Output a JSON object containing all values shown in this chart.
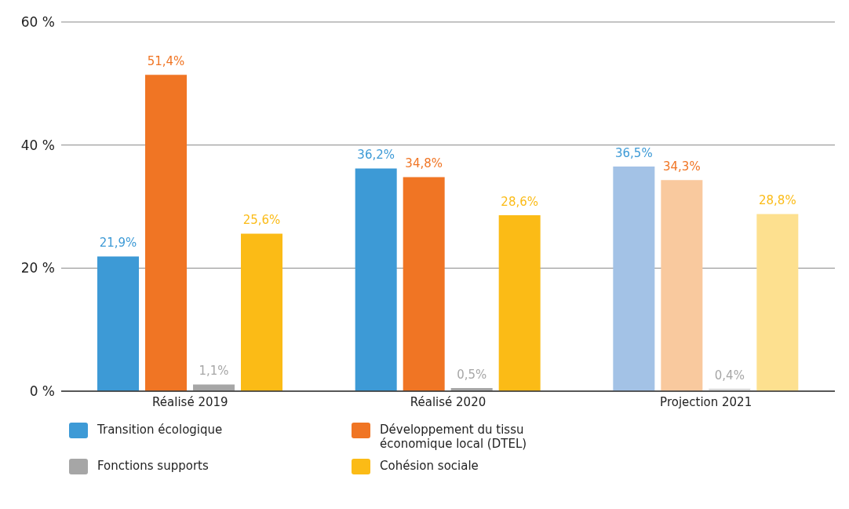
{
  "chart_data": {
    "type": "bar",
    "categories": [
      "Réalisé 2019",
      "Réalisé 2020",
      "Projection 2021"
    ],
    "series": [
      {
        "name": "Transition écologique",
        "color": "#3d9ad6",
        "colors": [
          "#3d9ad6",
          "#3d9ad6",
          "#a3c2e6"
        ],
        "values": [
          21.9,
          36.2,
          36.5
        ],
        "value_labels": [
          "21,9%",
          "36,2%",
          "36,5%"
        ]
      },
      {
        "name": "Développement du tissu économique local (DTEL)",
        "color": "#f07524",
        "colors": [
          "#f07524",
          "#f07524",
          "#f9c99e"
        ],
        "values": [
          51.4,
          34.8,
          34.3
        ],
        "value_labels": [
          "51,4%",
          "34,8%",
          "34,3%"
        ]
      },
      {
        "name": "Fonctions supports",
        "color": "#a6a6a6",
        "colors": [
          "#a6a6a6",
          "#a6a6a6",
          "#d9d9d9"
        ],
        "values": [
          1.1,
          0.5,
          0.4
        ],
        "value_labels": [
          "1,1%",
          "0,5%",
          "0,4%"
        ]
      },
      {
        "name": "Cohésion sociale",
        "color": "#fbbb16",
        "colors": [
          "#fbbb16",
          "#fbbb16",
          "#fde08f"
        ],
        "values": [
          25.6,
          28.6,
          28.8
        ],
        "value_labels": [
          "25,6%",
          "28,6%",
          "28,8%"
        ]
      }
    ],
    "ylim": [
      0,
      60
    ],
    "yticks": [
      {
        "value": 0,
        "label": "0 %"
      },
      {
        "value": 20,
        "label": "20 %"
      },
      {
        "value": 40,
        "label": "40 %"
      },
      {
        "value": 60,
        "label": "60 %"
      }
    ],
    "grid": "y",
    "legend": "bottom"
  }
}
